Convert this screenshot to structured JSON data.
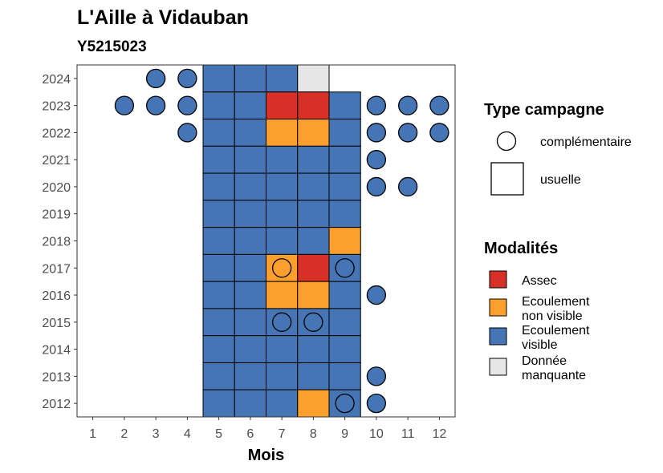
{
  "chart_data": {
    "type": "heatmap",
    "title": "L'Aille à Vidauban",
    "subtitle": "Y5215023",
    "xlabel": "Mois",
    "ylabel": "",
    "x_categories": [
      "1",
      "2",
      "3",
      "4",
      "5",
      "6",
      "7",
      "8",
      "9",
      "10",
      "11",
      "12"
    ],
    "y_categories": [
      "2012",
      "2013",
      "2014",
      "2015",
      "2016",
      "2017",
      "2018",
      "2019",
      "2020",
      "2021",
      "2022",
      "2023",
      "2024"
    ],
    "colors": {
      "assec": "#d73027",
      "non_visible": "#fd9f2d",
      "visible": "#4575b4",
      "manquante": "#e6e6e6"
    },
    "legend_shape": {
      "title": "Type campagne",
      "items": [
        {
          "key": "complementaire",
          "label": "complémentaire",
          "shape": "circle"
        },
        {
          "key": "usuelle",
          "label": "usuelle",
          "shape": "square"
        }
      ]
    },
    "legend_modalites": {
      "title": "Modalités",
      "items": [
        {
          "key": "assec",
          "label": [
            "Assec"
          ],
          "color": "#d73027"
        },
        {
          "key": "non_visible",
          "label": [
            "Ecoulement",
            "non visible"
          ],
          "color": "#fd9f2d"
        },
        {
          "key": "visible",
          "label": [
            "Ecoulement",
            "visible"
          ],
          "color": "#4575b4"
        },
        {
          "key": "manquante",
          "label": [
            "Donnée",
            "manquante"
          ],
          "color": "#e6e6e6"
        }
      ]
    },
    "usuelle": [
      {
        "year": 2024,
        "month": 5,
        "modalite": "visible"
      },
      {
        "year": 2024,
        "month": 6,
        "modalite": "visible"
      },
      {
        "year": 2024,
        "month": 7,
        "modalite": "visible"
      },
      {
        "year": 2024,
        "month": 8,
        "modalite": "manquante"
      },
      {
        "year": 2023,
        "month": 5,
        "modalite": "visible"
      },
      {
        "year": 2023,
        "month": 6,
        "modalite": "visible"
      },
      {
        "year": 2023,
        "month": 7,
        "modalite": "assec"
      },
      {
        "year": 2023,
        "month": 8,
        "modalite": "assec"
      },
      {
        "year": 2023,
        "month": 9,
        "modalite": "visible"
      },
      {
        "year": 2022,
        "month": 5,
        "modalite": "visible"
      },
      {
        "year": 2022,
        "month": 6,
        "modalite": "visible"
      },
      {
        "year": 2022,
        "month": 7,
        "modalite": "non_visible"
      },
      {
        "year": 2022,
        "month": 8,
        "modalite": "non_visible"
      },
      {
        "year": 2022,
        "month": 9,
        "modalite": "visible"
      },
      {
        "year": 2021,
        "month": 5,
        "modalite": "visible"
      },
      {
        "year": 2021,
        "month": 6,
        "modalite": "visible"
      },
      {
        "year": 2021,
        "month": 7,
        "modalite": "visible"
      },
      {
        "year": 2021,
        "month": 8,
        "modalite": "visible"
      },
      {
        "year": 2021,
        "month": 9,
        "modalite": "visible"
      },
      {
        "year": 2020,
        "month": 5,
        "modalite": "visible"
      },
      {
        "year": 2020,
        "month": 6,
        "modalite": "visible"
      },
      {
        "year": 2020,
        "month": 7,
        "modalite": "visible"
      },
      {
        "year": 2020,
        "month": 8,
        "modalite": "visible"
      },
      {
        "year": 2020,
        "month": 9,
        "modalite": "visible"
      },
      {
        "year": 2019,
        "month": 5,
        "modalite": "visible"
      },
      {
        "year": 2019,
        "month": 6,
        "modalite": "visible"
      },
      {
        "year": 2019,
        "month": 7,
        "modalite": "visible"
      },
      {
        "year": 2019,
        "month": 8,
        "modalite": "visible"
      },
      {
        "year": 2019,
        "month": 9,
        "modalite": "visible"
      },
      {
        "year": 2018,
        "month": 5,
        "modalite": "visible"
      },
      {
        "year": 2018,
        "month": 6,
        "modalite": "visible"
      },
      {
        "year": 2018,
        "month": 7,
        "modalite": "visible"
      },
      {
        "year": 2018,
        "month": 8,
        "modalite": "visible"
      },
      {
        "year": 2018,
        "month": 9,
        "modalite": "non_visible"
      },
      {
        "year": 2017,
        "month": 5,
        "modalite": "visible"
      },
      {
        "year": 2017,
        "month": 6,
        "modalite": "visible"
      },
      {
        "year": 2017,
        "month": 7,
        "modalite": "non_visible"
      },
      {
        "year": 2017,
        "month": 8,
        "modalite": "assec"
      },
      {
        "year": 2017,
        "month": 9,
        "modalite": "visible"
      },
      {
        "year": 2016,
        "month": 5,
        "modalite": "visible"
      },
      {
        "year": 2016,
        "month": 6,
        "modalite": "visible"
      },
      {
        "year": 2016,
        "month": 7,
        "modalite": "non_visible"
      },
      {
        "year": 2016,
        "month": 8,
        "modalite": "non_visible"
      },
      {
        "year": 2016,
        "month": 9,
        "modalite": "visible"
      },
      {
        "year": 2015,
        "month": 5,
        "modalite": "visible"
      },
      {
        "year": 2015,
        "month": 6,
        "modalite": "visible"
      },
      {
        "year": 2015,
        "month": 7,
        "modalite": "visible"
      },
      {
        "year": 2015,
        "month": 8,
        "modalite": "visible"
      },
      {
        "year": 2015,
        "month": 9,
        "modalite": "visible"
      },
      {
        "year": 2014,
        "month": 5,
        "modalite": "visible"
      },
      {
        "year": 2014,
        "month": 6,
        "modalite": "visible"
      },
      {
        "year": 2014,
        "month": 7,
        "modalite": "visible"
      },
      {
        "year": 2014,
        "month": 8,
        "modalite": "visible"
      },
      {
        "year": 2014,
        "month": 9,
        "modalite": "visible"
      },
      {
        "year": 2013,
        "month": 5,
        "modalite": "visible"
      },
      {
        "year": 2013,
        "month": 6,
        "modalite": "visible"
      },
      {
        "year": 2013,
        "month": 7,
        "modalite": "visible"
      },
      {
        "year": 2013,
        "month": 8,
        "modalite": "visible"
      },
      {
        "year": 2013,
        "month": 9,
        "modalite": "visible"
      },
      {
        "year": 2012,
        "month": 5,
        "modalite": "visible"
      },
      {
        "year": 2012,
        "month": 6,
        "modalite": "visible"
      },
      {
        "year": 2012,
        "month": 7,
        "modalite": "visible"
      },
      {
        "year": 2012,
        "month": 8,
        "modalite": "non_visible"
      },
      {
        "year": 2012,
        "month": 9,
        "modalite": "visible"
      }
    ],
    "complementaire": [
      {
        "year": 2024,
        "month": 3,
        "modalite": "visible"
      },
      {
        "year": 2024,
        "month": 4,
        "modalite": "visible"
      },
      {
        "year": 2023,
        "month": 2,
        "modalite": "visible"
      },
      {
        "year": 2023,
        "month": 3,
        "modalite": "visible"
      },
      {
        "year": 2023,
        "month": 4,
        "modalite": "visible"
      },
      {
        "year": 2023,
        "month": 10,
        "modalite": "visible"
      },
      {
        "year": 2023,
        "month": 11,
        "modalite": "visible"
      },
      {
        "year": 2023,
        "month": 12,
        "modalite": "visible"
      },
      {
        "year": 2022,
        "month": 4,
        "modalite": "visible"
      },
      {
        "year": 2022,
        "month": 10,
        "modalite": "visible"
      },
      {
        "year": 2022,
        "month": 11,
        "modalite": "visible"
      },
      {
        "year": 2022,
        "month": 12,
        "modalite": "visible"
      },
      {
        "year": 2021,
        "month": 10,
        "modalite": "visible"
      },
      {
        "year": 2020,
        "month": 10,
        "modalite": "visible"
      },
      {
        "year": 2020,
        "month": 11,
        "modalite": "visible"
      },
      {
        "year": 2017,
        "month": 7,
        "modalite": "non_visible"
      },
      {
        "year": 2017,
        "month": 9,
        "modalite": "visible"
      },
      {
        "year": 2016,
        "month": 10,
        "modalite": "visible"
      },
      {
        "year": 2015,
        "month": 7,
        "modalite": "visible"
      },
      {
        "year": 2015,
        "month": 8,
        "modalite": "visible"
      },
      {
        "year": 2013,
        "month": 10,
        "modalite": "visible"
      },
      {
        "year": 2012,
        "month": 9,
        "modalite": "visible"
      },
      {
        "year": 2012,
        "month": 10,
        "modalite": "visible"
      }
    ]
  }
}
